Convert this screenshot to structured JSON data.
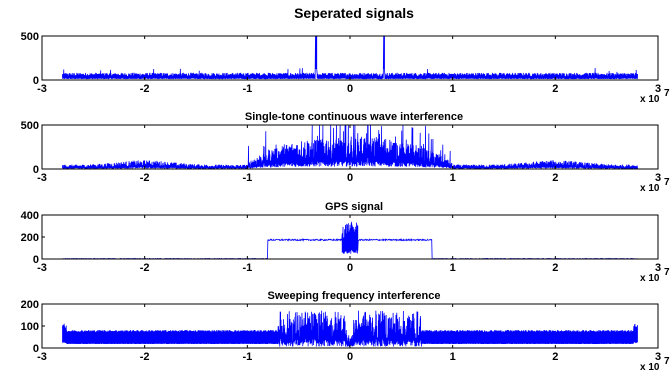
{
  "figure": {
    "title": "Seperated signals",
    "x_multiplier": "x 10",
    "x_multiplier_exp": "7"
  },
  "chart_data": [
    {
      "type": "line",
      "title": "",
      "xlabel": "",
      "ylabel": "",
      "xlim": [
        -3,
        3
      ],
      "ylim": [
        0,
        500
      ],
      "xticks": [
        -3,
        -2,
        -1,
        0,
        1,
        2,
        3
      ],
      "yticks": [
        0,
        500
      ],
      "grid": false,
      "line_color": "#0000ff",
      "series": [
        {
          "shape": "noise_floor_with_two_spikes",
          "x_span": [
            -2.8,
            2.8
          ],
          "baseline": 75,
          "noise_peak": 130,
          "spikes": [
            {
              "x": -0.33,
              "y": 500
            },
            {
              "x": 0.33,
              "y": 500
            }
          ]
        }
      ]
    },
    {
      "type": "line",
      "title": "Single-tone continuous wave interference",
      "xlabel": "",
      "ylabel": "",
      "xlim": [
        -3,
        3
      ],
      "ylim": [
        0,
        500
      ],
      "xticks": [
        -3,
        -2,
        -1,
        0,
        1,
        2,
        3
      ],
      "yticks": [
        0,
        500
      ],
      "grid": false,
      "line_color": "#0000ff",
      "series": [
        {
          "shape": "broadband_noise_with_central_hump",
          "x_span": [
            -2.8,
            2.8
          ],
          "baseline": 40,
          "side_humps": [
            {
              "x": -2.0,
              "y": 120
            },
            {
              "x": 2.0,
              "y": 120
            }
          ],
          "central_band": [
            -1.0,
            1.0
          ],
          "central_peak": 500
        }
      ]
    },
    {
      "type": "line",
      "title": "GPS signal",
      "xlabel": "",
      "ylabel": "",
      "xlim": [
        -3,
        3
      ],
      "ylim": [
        0,
        400
      ],
      "xticks": [
        -3,
        -2,
        -1,
        0,
        1,
        2,
        3
      ],
      "yticks": [
        0,
        200,
        400
      ],
      "grid": false,
      "line_color": "#0000ff",
      "series": [
        {
          "shape": "flat_band_with_center_burst",
          "x_span": [
            -2.8,
            2.8
          ],
          "baseline": 5,
          "band": [
            -0.8,
            0.8
          ],
          "band_level": 180,
          "center_band": [
            -0.08,
            0.08
          ],
          "center_peak": 340
        }
      ]
    },
    {
      "type": "line",
      "title": "Sweeping frequency interference",
      "xlabel": "",
      "ylabel": "",
      "xlim": [
        -3,
        3
      ],
      "ylim": [
        0,
        200
      ],
      "xticks": [
        -3,
        -2,
        -1,
        0,
        1,
        2,
        3
      ],
      "yticks": [
        0,
        100,
        200
      ],
      "grid": false,
      "line_color": "#0000ff",
      "series": [
        {
          "shape": "plateau_with_dense_central_band",
          "x_span": [
            -2.8,
            2.8
          ],
          "plateau": 80,
          "edge_peaks": 110,
          "dense_band": [
            -0.7,
            0.7
          ],
          "dense_peak": 170,
          "center_notch": 20
        }
      ]
    }
  ]
}
